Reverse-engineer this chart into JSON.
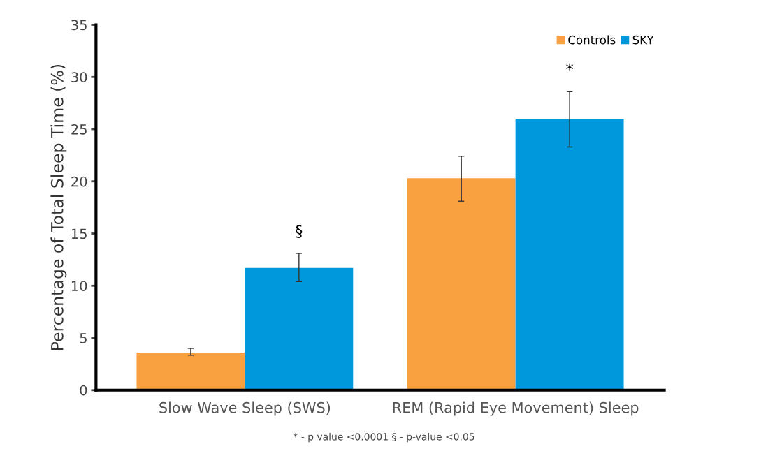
{
  "chart_data": {
    "type": "bar",
    "ylabel": "Percentage of Total Sleep Time (%)",
    "categories": [
      "Slow Wave Sleep (SWS)",
      "REM (Rapid Eye Movement) Sleep"
    ],
    "series": [
      {
        "name": "Controls",
        "color": "#f9a040",
        "values": [
          3.6,
          20.3
        ],
        "errors": [
          [
            3.35,
            4.0
          ],
          [
            18.1,
            22.4
          ]
        ]
      },
      {
        "name": "SKY",
        "color": "#0098dc",
        "values": [
          11.7,
          26.0
        ],
        "errors": [
          [
            10.4,
            13.1
          ],
          [
            23.3,
            28.6
          ]
        ]
      }
    ],
    "ylim": [
      0,
      35
    ],
    "yticks": [
      0,
      5,
      10,
      15,
      20,
      25,
      30,
      35
    ],
    "grid": false,
    "legend": "top right",
    "annotations": [
      "§",
      "*",
      "* - p value <0.0001 § - p-value <0.05"
    ]
  }
}
